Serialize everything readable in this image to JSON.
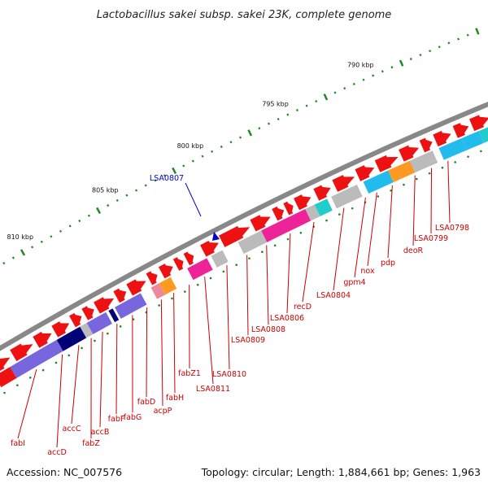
{
  "title": "Lactobacillus sakei subsp. sakei 23K, complete genome",
  "footer": {
    "accession": "Accession: NC_007576",
    "summary": "Topology: circular; Length: 1,884,661 bp; Genes: 1,963"
  },
  "ticks": [
    "790 kbp",
    "795 kbp",
    "800 kbp",
    "805 kbp",
    "810 kbp"
  ],
  "highlight": {
    "label": "LSA0807",
    "color": "#0000cc"
  },
  "gene_labels": [
    "LSA0798",
    "LSA0799",
    "deoR",
    "pdp",
    "nox",
    "gpm4",
    "LSA0804",
    "recD",
    "LSA0806",
    "LSA0808",
    "LSA0809",
    "LSA0810",
    "LSA0811",
    "fabZ1",
    "fabH",
    "acpP",
    "fabD",
    "fabG",
    "fabF",
    "accB",
    "fabZ",
    "accC",
    "accD",
    "fabI"
  ],
  "colors": {
    "backbone": "#888888",
    "cds": "#ee1111",
    "cog_purple": "#7766dd",
    "cog_navy": "#000077",
    "cog_magenta": "#ee2299",
    "cog_cyan": "#22bbee",
    "cog_teal": "#22cccc",
    "cog_orange": "#ff9922",
    "cog_gray": "#bbbbbb",
    "cog_pink": "#ee8899",
    "ticks": "#228822"
  }
}
